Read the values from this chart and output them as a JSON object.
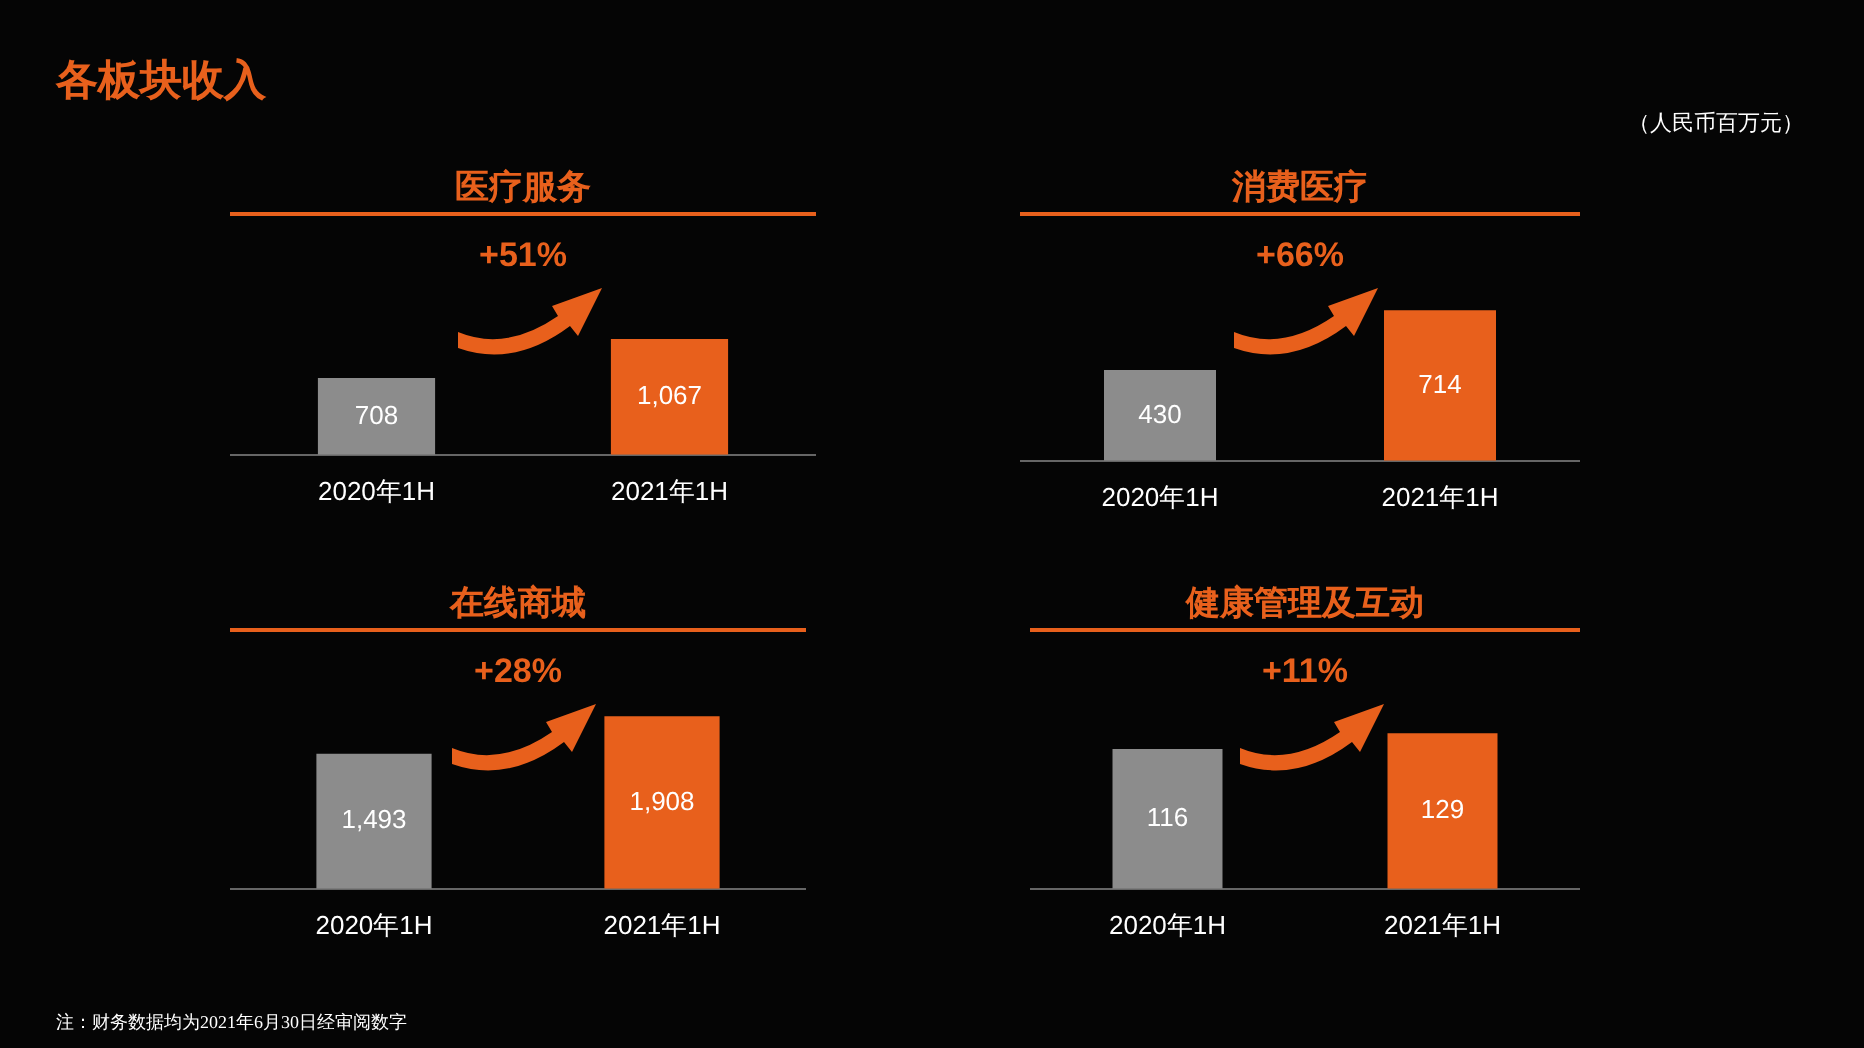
{
  "chart_data": [
    {
      "type": "other",
      "title": "各板块收入",
      "annotations": [
        "（人民币百万元）",
        "注：财务数据均为2021年6月30日经审阅数字"
      ]
    },
    {
      "type": "bar",
      "title": "医疗服务",
      "categories": [
        "2020年1H",
        "2021年1H"
      ],
      "values": [
        708,
        1067
      ],
      "colors": [
        "#8c8c8c",
        "#e8601c"
      ],
      "value_labels": [
        "708",
        "1,067"
      ],
      "annotations": [
        "+51%"
      ]
    },
    {
      "type": "bar",
      "title": "消费医疗",
      "categories": [
        "2020年1H",
        "2021年1H"
      ],
      "values": [
        430,
        714
      ],
      "colors": [
        "#8c8c8c",
        "#e8601c"
      ],
      "value_labels": [
        "430",
        "714"
      ],
      "annotations": [
        "+66%"
      ]
    },
    {
      "type": "bar",
      "title": "在线商城",
      "categories": [
        "2020年1H",
        "2021年1H"
      ],
      "values": [
        1493,
        1908
      ],
      "colors": [
        "#8c8c8c",
        "#e8601c"
      ],
      "value_labels": [
        "1,493",
        "1,908"
      ],
      "annotations": [
        "+28%"
      ]
    },
    {
      "type": "bar",
      "title": "健康管理及互动",
      "categories": [
        "2020年1H",
        "2021年1H"
      ],
      "values": [
        116,
        129
      ],
      "colors": [
        "#8c8c8c",
        "#e8601c"
      ],
      "value_labels": [
        "116",
        "129"
      ],
      "annotations": [
        "+11%"
      ]
    }
  ]
}
